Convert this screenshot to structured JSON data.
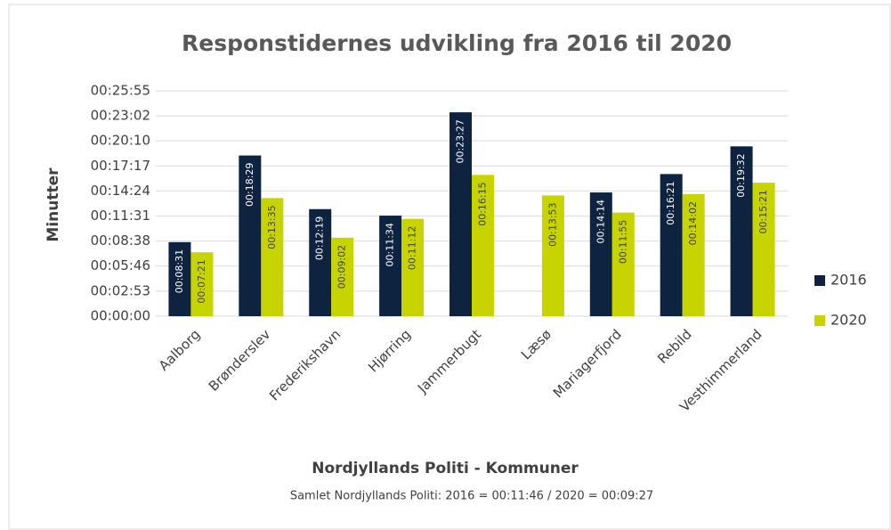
{
  "chart_data": {
    "type": "bar",
    "title": "Responstidernes udvikling fra 2016 til 2020",
    "ylabel": "Minutter",
    "xlabel": "Nordjyllands Politi - Kommuner",
    "subtitle": "Samlet Nordjyllands Politi: 2016 = 00:11:46 / 2020 = 00:09:27",
    "categories": [
      "Aalborg",
      "Brønderslev",
      "Frederikshavn",
      "Hjørring",
      "Jammerbugt",
      "Læsø",
      "Mariagerfjord",
      "Rebild",
      "Vesthimmerland"
    ],
    "series": [
      {
        "name": "2016",
        "color": "#0d2340",
        "values": [
          511,
          1109,
          739,
          694,
          1407,
          null,
          854,
          981,
          1172
        ],
        "value_labels": [
          "00:08:31",
          "00:18:29",
          "00:12:19",
          "00:11:34",
          "00:23:27",
          null,
          "00:14:14",
          "00:16:21",
          "00:19:32"
        ]
      },
      {
        "name": "2020",
        "color": "#c8d400",
        "values": [
          441,
          815,
          542,
          672,
          975,
          833,
          715,
          842,
          921
        ],
        "value_labels": [
          "00:07:21",
          "00:13:35",
          "00:09:02",
          "00:11:12",
          "00:16:15",
          "00:13:53",
          "00:11:55",
          "00:14:02",
          "00:15:21"
        ]
      }
    ],
    "ylim": [
      0,
      1555
    ],
    "yticks": [
      {
        "value": 0,
        "label": "00:00:00"
      },
      {
        "value": 173,
        "label": "00:02:53"
      },
      {
        "value": 346,
        "label": "00:05:46"
      },
      {
        "value": 518,
        "label": "00:08:38"
      },
      {
        "value": 691,
        "label": "00:11:31"
      },
      {
        "value": 864,
        "label": "00:14:24"
      },
      {
        "value": 1037,
        "label": "00:17:17"
      },
      {
        "value": 1210,
        "label": "00:20:10"
      },
      {
        "value": 1382,
        "label": "00:23:02"
      },
      {
        "value": 1555,
        "label": "00:25:55"
      }
    ],
    "grid": true,
    "legend": "right"
  }
}
